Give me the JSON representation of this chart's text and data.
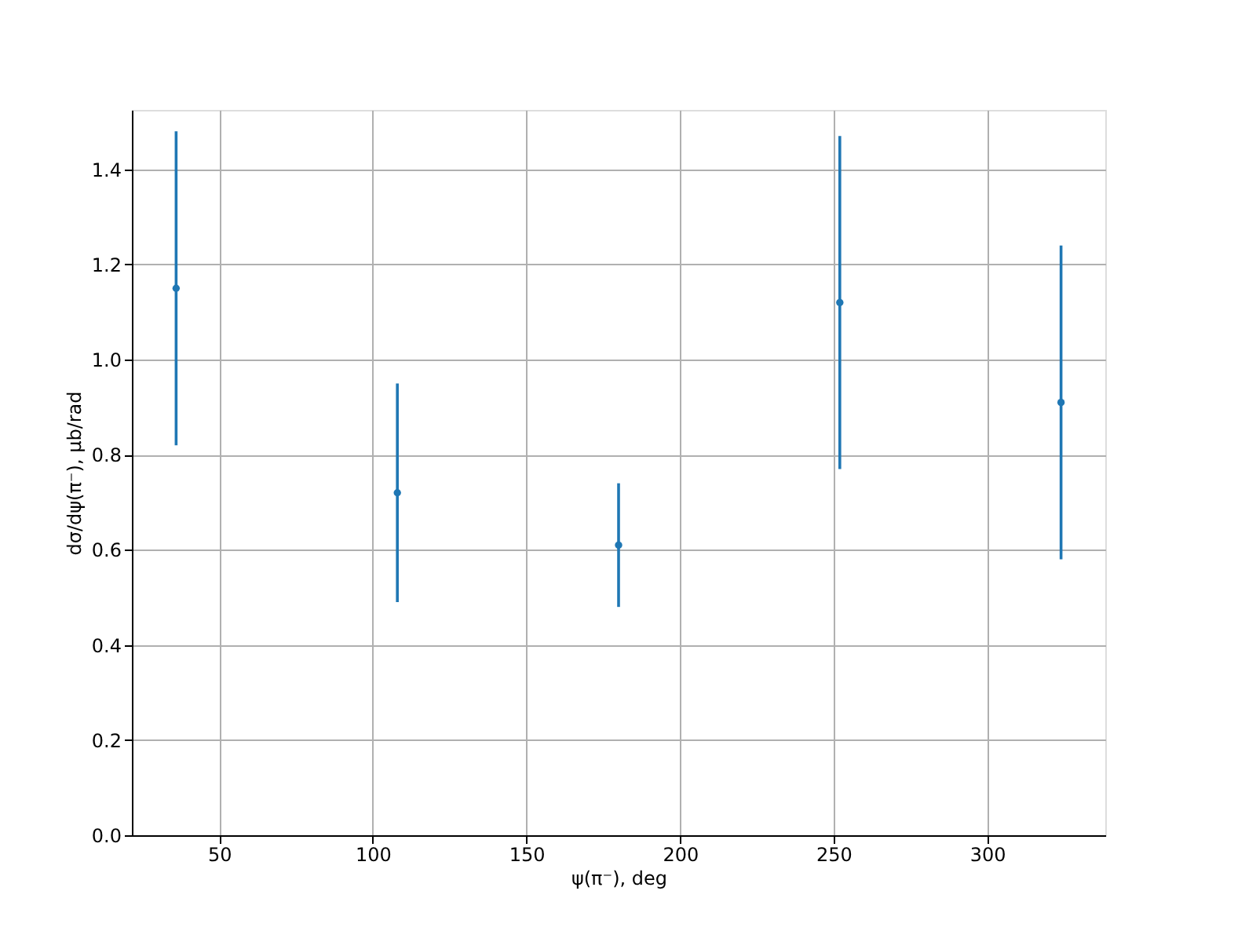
{
  "chart_data": {
    "type": "scatter",
    "xlabel": "ψ(π⁻), deg",
    "ylabel": "dσ/dψ(π⁻), μb/rad",
    "x": [
      36,
      108,
      180,
      252,
      324
    ],
    "series": [
      {
        "color": "#1f77b4",
        "values": [
          1.15,
          0.72,
          0.61,
          1.12,
          0.91
        ],
        "errors": [
          0.33,
          0.23,
          0.13,
          0.35,
          0.33
        ]
      }
    ],
    "xlim": [
      21.6,
      338.4
    ],
    "xticks": [
      50,
      100,
      150,
      200,
      250,
      300
    ],
    "ylim": [
      0,
      1.525
    ],
    "yticks": [
      {
        "value": 0,
        "label": "0.0"
      },
      0.2,
      0.4,
      0.6,
      0.8,
      {
        "value": 1,
        "label": "1.0"
      },
      1.2,
      1.4
    ],
    "grid": true,
    "marker": "circle"
  }
}
